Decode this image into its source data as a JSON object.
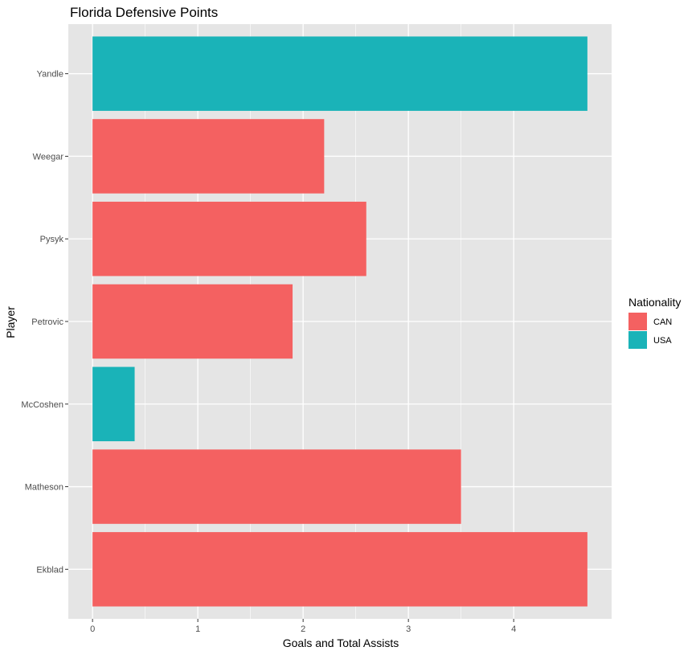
{
  "chart_data": {
    "type": "bar",
    "orientation": "horizontal",
    "title": "Florida Defensive Points",
    "xlabel": "Goals and Total Assists",
    "ylabel": "Player",
    "xlim": [
      -0.23,
      4.93
    ],
    "x_ticks": [
      0,
      1,
      2,
      3,
      4
    ],
    "grid": true,
    "legend": {
      "title": "Nationality",
      "placement": "right",
      "entries": [
        {
          "name": "CAN",
          "color": "#F8766D"
        },
        {
          "name": "USA",
          "color": "#00BFC4"
        }
      ]
    },
    "categories": [
      "Yandle",
      "Weegar",
      "Pysyk",
      "Petrovic",
      "McCoshen",
      "Matheson",
      "Ekblad"
    ],
    "values": [
      4.7,
      2.2,
      2.6,
      1.9,
      0.4,
      3.5,
      4.7
    ],
    "groups": [
      "USA",
      "CAN",
      "CAN",
      "CAN",
      "USA",
      "CAN",
      "CAN"
    ]
  },
  "colors": {
    "panel_background": "#E5E5E5",
    "grid_major": "#FFFFFF",
    "CAN": "#F46161",
    "USA": "#1AB3B8"
  }
}
